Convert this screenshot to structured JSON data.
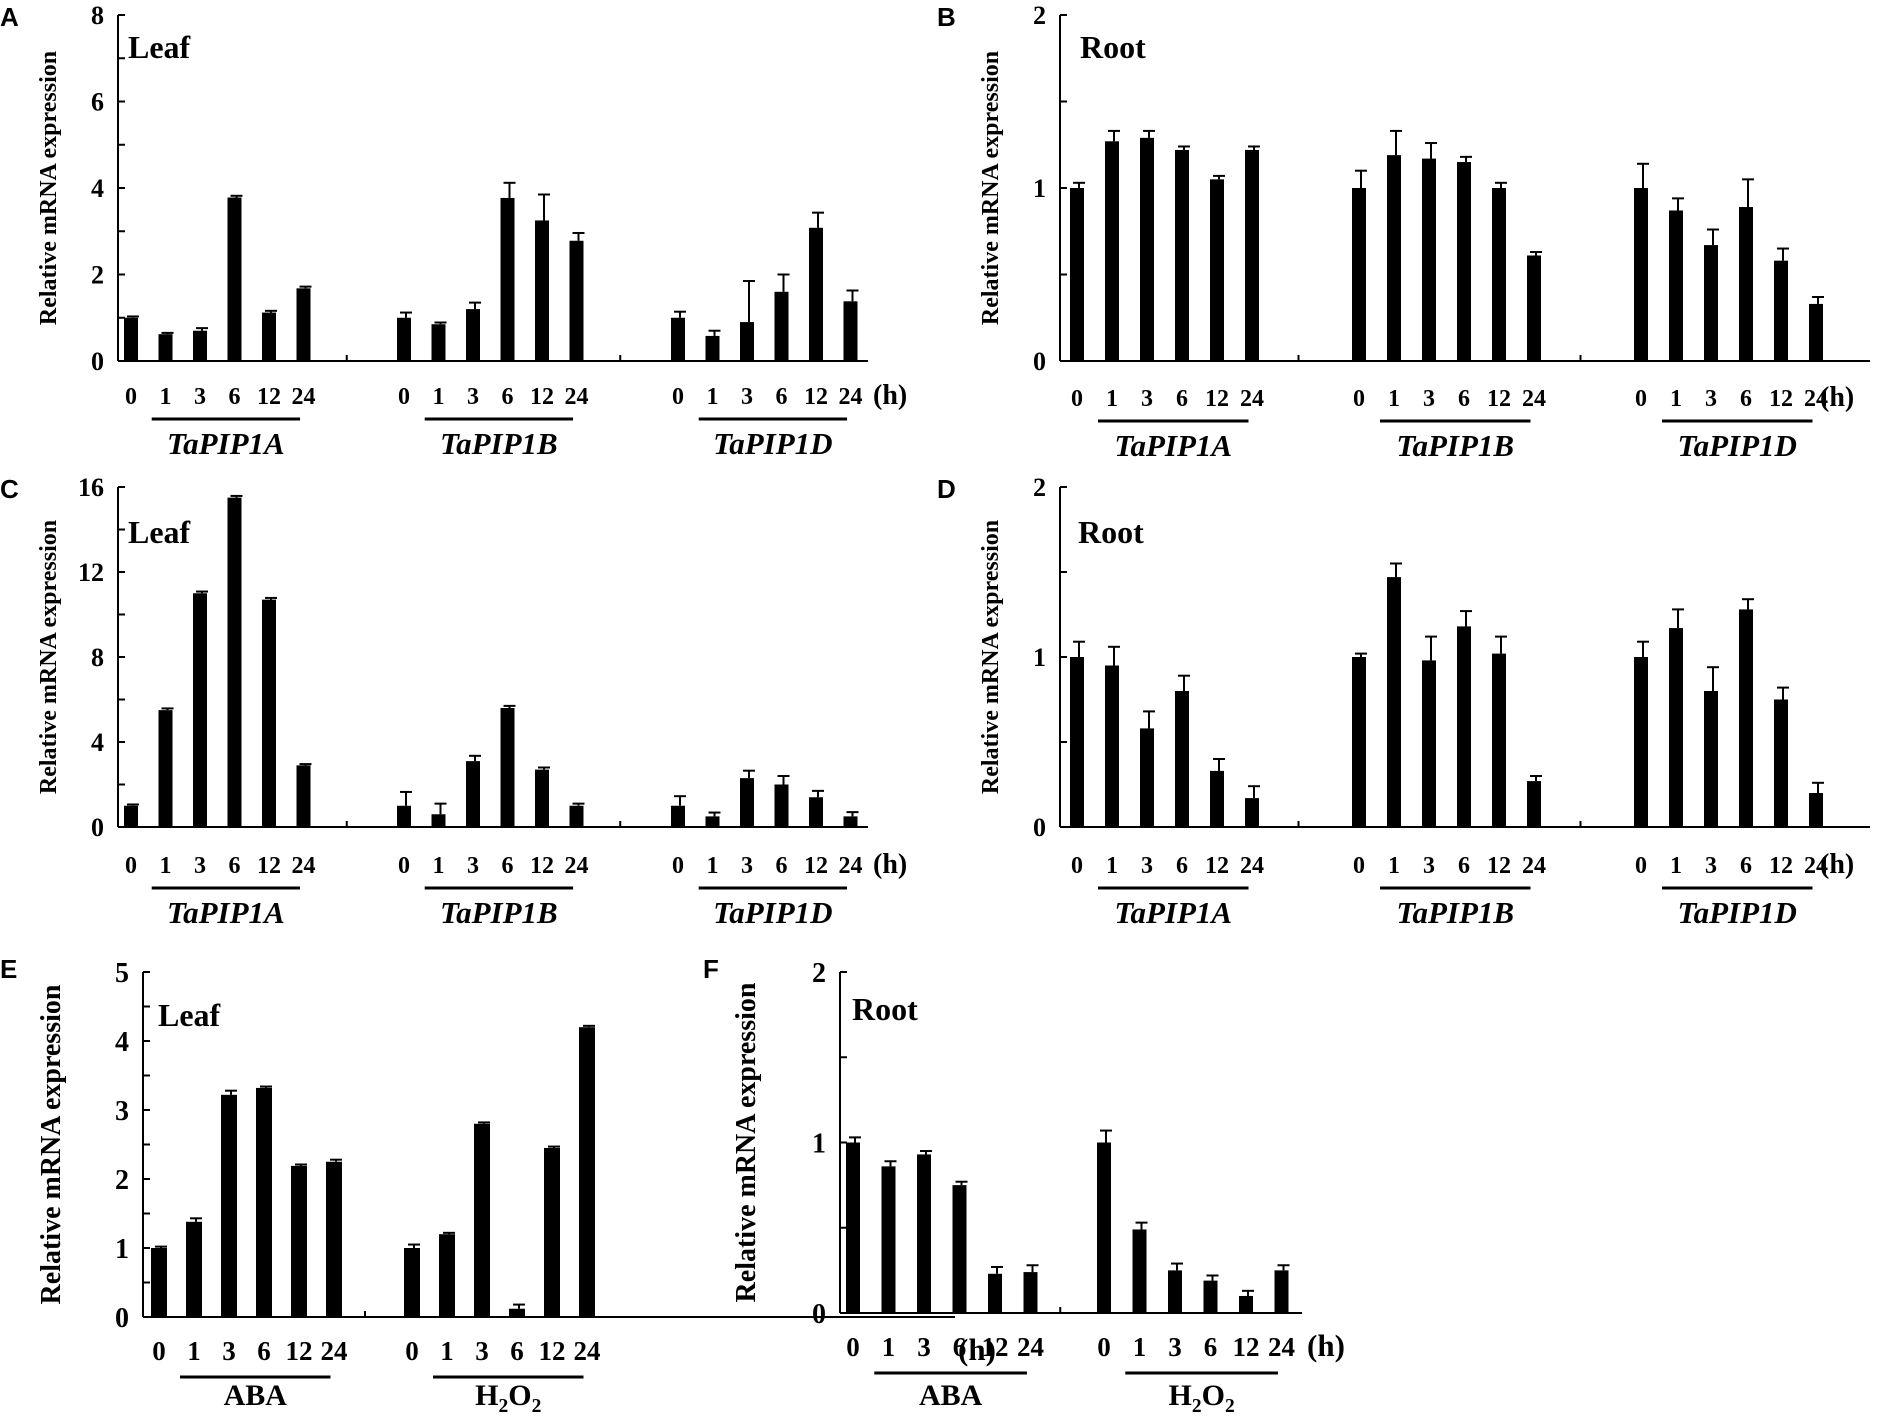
{
  "chart_data": [
    {
      "panel": "A",
      "type": "bar",
      "title": "Leaf",
      "ylabel": "Relative mRNA expression",
      "ylim": [
        0,
        8
      ],
      "yticks": [
        0,
        2,
        4,
        6,
        8
      ],
      "unit_label": "(h)",
      "italic_groups": true,
      "groups": [
        {
          "name": "TaPIP1A",
          "categories": [
            "0",
            "1",
            "3",
            "6",
            "12",
            "24"
          ],
          "values": [
            1.0,
            0.62,
            0.7,
            3.78,
            1.12,
            1.68
          ],
          "errors": [
            0.03,
            0.03,
            0.06,
            0.04,
            0.04,
            0.04
          ]
        },
        {
          "name": "TaPIP1B",
          "categories": [
            "0",
            "1",
            "3",
            "6",
            "12",
            "24"
          ],
          "values": [
            1.0,
            0.85,
            1.2,
            3.77,
            3.25,
            2.78
          ],
          "errors": [
            0.12,
            0.04,
            0.15,
            0.35,
            0.6,
            0.18
          ]
        },
        {
          "name": "TaPIP1D",
          "categories": [
            "0",
            "1",
            "3",
            "6",
            "12",
            "24"
          ],
          "values": [
            1.0,
            0.58,
            0.9,
            1.6,
            3.08,
            1.38
          ],
          "errors": [
            0.14,
            0.12,
            0.95,
            0.4,
            0.35,
            0.25
          ]
        }
      ]
    },
    {
      "panel": "B",
      "type": "bar",
      "title": "Root",
      "ylabel": "Relative mRNA expression",
      "ylim": [
        0,
        2
      ],
      "yticks": [
        0,
        1,
        2
      ],
      "unit_label": "(h)",
      "italic_groups": true,
      "groups": [
        {
          "name": "TaPIP1A",
          "categories": [
            "0",
            "1",
            "3",
            "6",
            "12",
            "24"
          ],
          "values": [
            1.0,
            1.27,
            1.29,
            1.22,
            1.05,
            1.22
          ],
          "errors": [
            0.03,
            0.06,
            0.04,
            0.02,
            0.02,
            0.02
          ]
        },
        {
          "name": "TaPIP1B",
          "categories": [
            "0",
            "1",
            "3",
            "6",
            "12",
            "24"
          ],
          "values": [
            1.0,
            1.19,
            1.17,
            1.15,
            1.0,
            0.61
          ],
          "errors": [
            0.1,
            0.14,
            0.09,
            0.03,
            0.03,
            0.02
          ]
        },
        {
          "name": "TaPIP1D",
          "categories": [
            "0",
            "1",
            "3",
            "6",
            "12",
            "24"
          ],
          "values": [
            1.0,
            0.87,
            0.67,
            0.89,
            0.58,
            0.33
          ],
          "errors": [
            0.14,
            0.07,
            0.09,
            0.16,
            0.07,
            0.04
          ]
        }
      ]
    },
    {
      "panel": "C",
      "type": "bar",
      "title": "Leaf",
      "ylabel": "Relative mRNA expression",
      "ylim": [
        0,
        16
      ],
      "yticks": [
        0,
        4,
        8,
        12,
        16
      ],
      "unit_label": "(h)",
      "italic_groups": true,
      "groups": [
        {
          "name": "TaPIP1A",
          "categories": [
            "0",
            "1",
            "3",
            "6",
            "12",
            "24"
          ],
          "values": [
            1.0,
            5.5,
            11.0,
            15.5,
            10.7,
            2.9
          ],
          "errors": [
            0.06,
            0.08,
            0.08,
            0.08,
            0.08,
            0.06
          ]
        },
        {
          "name": "TaPIP1B",
          "categories": [
            "0",
            "1",
            "3",
            "6",
            "12",
            "24"
          ],
          "values": [
            1.0,
            0.6,
            3.1,
            5.6,
            2.7,
            1.0
          ],
          "errors": [
            0.65,
            0.5,
            0.25,
            0.1,
            0.1,
            0.1
          ]
        },
        {
          "name": "TaPIP1D",
          "categories": [
            "0",
            "1",
            "3",
            "6",
            "12",
            "24"
          ],
          "values": [
            1.0,
            0.5,
            2.3,
            2.0,
            1.4,
            0.5
          ],
          "errors": [
            0.45,
            0.18,
            0.35,
            0.4,
            0.3,
            0.2
          ]
        }
      ]
    },
    {
      "panel": "D",
      "type": "bar",
      "title": "Root",
      "ylabel": "Relative mRNA expression",
      "ylim": [
        0,
        2
      ],
      "yticks": [
        0,
        1,
        2
      ],
      "unit_label": "(h)",
      "italic_groups": true,
      "groups": [
        {
          "name": "TaPIP1A",
          "categories": [
            "0",
            "1",
            "3",
            "6",
            "12",
            "24"
          ],
          "values": [
            1.0,
            0.95,
            0.58,
            0.8,
            0.33,
            0.17
          ],
          "errors": [
            0.09,
            0.11,
            0.1,
            0.09,
            0.07,
            0.07
          ]
        },
        {
          "name": "TaPIP1B",
          "categories": [
            "0",
            "1",
            "3",
            "6",
            "12",
            "24"
          ],
          "values": [
            1.0,
            1.47,
            0.98,
            1.18,
            1.02,
            0.27
          ],
          "errors": [
            0.02,
            0.08,
            0.14,
            0.09,
            0.1,
            0.03
          ]
        },
        {
          "name": "TaPIP1D",
          "categories": [
            "0",
            "1",
            "3",
            "6",
            "12",
            "24"
          ],
          "values": [
            1.0,
            1.17,
            0.8,
            1.28,
            0.75,
            0.2
          ],
          "errors": [
            0.09,
            0.11,
            0.14,
            0.06,
            0.07,
            0.06
          ]
        }
      ]
    },
    {
      "panel": "E",
      "type": "bar",
      "title": "Leaf",
      "ylabel": "Relative mRNA expression",
      "ylim": [
        0,
        5
      ],
      "yticks": [
        0,
        1,
        2,
        3,
        4,
        5
      ],
      "unit_label": "(h)",
      "italic_groups": false,
      "groups": [
        {
          "name": "ABA",
          "categories": [
            "0",
            "1",
            "3",
            "6",
            "12",
            "24"
          ],
          "values": [
            1.0,
            1.38,
            3.22,
            3.32,
            2.19,
            2.25
          ],
          "errors": [
            0.02,
            0.05,
            0.06,
            0.02,
            0.02,
            0.03
          ]
        },
        {
          "name": "H2O2",
          "categories": [
            "0",
            "1",
            "3",
            "6",
            "12",
            "24"
          ],
          "values": [
            1.0,
            1.2,
            2.8,
            0.12,
            2.45,
            4.2
          ],
          "errors": [
            0.05,
            0.02,
            0.02,
            0.06,
            0.02,
            0.02
          ]
        }
      ]
    },
    {
      "panel": "F",
      "type": "bar",
      "title": "Root",
      "ylabel": "Relative mRNA expression",
      "ylim": [
        0,
        2
      ],
      "yticks": [
        0,
        1,
        2
      ],
      "unit_label": "(h)",
      "italic_groups": false,
      "groups": [
        {
          "name": "ABA",
          "categories": [
            "0",
            "1",
            "3",
            "6",
            "12",
            "24"
          ],
          "values": [
            1.0,
            0.86,
            0.93,
            0.75,
            0.23,
            0.24
          ],
          "errors": [
            0.03,
            0.03,
            0.02,
            0.02,
            0.04,
            0.04
          ]
        },
        {
          "name": "H2O2",
          "categories": [
            "0",
            "1",
            "3",
            "6",
            "12",
            "24"
          ],
          "values": [
            1.0,
            0.49,
            0.25,
            0.19,
            0.1,
            0.25
          ],
          "errors": [
            0.07,
            0.04,
            0.04,
            0.03,
            0.03,
            0.03
          ]
        }
      ]
    }
  ]
}
